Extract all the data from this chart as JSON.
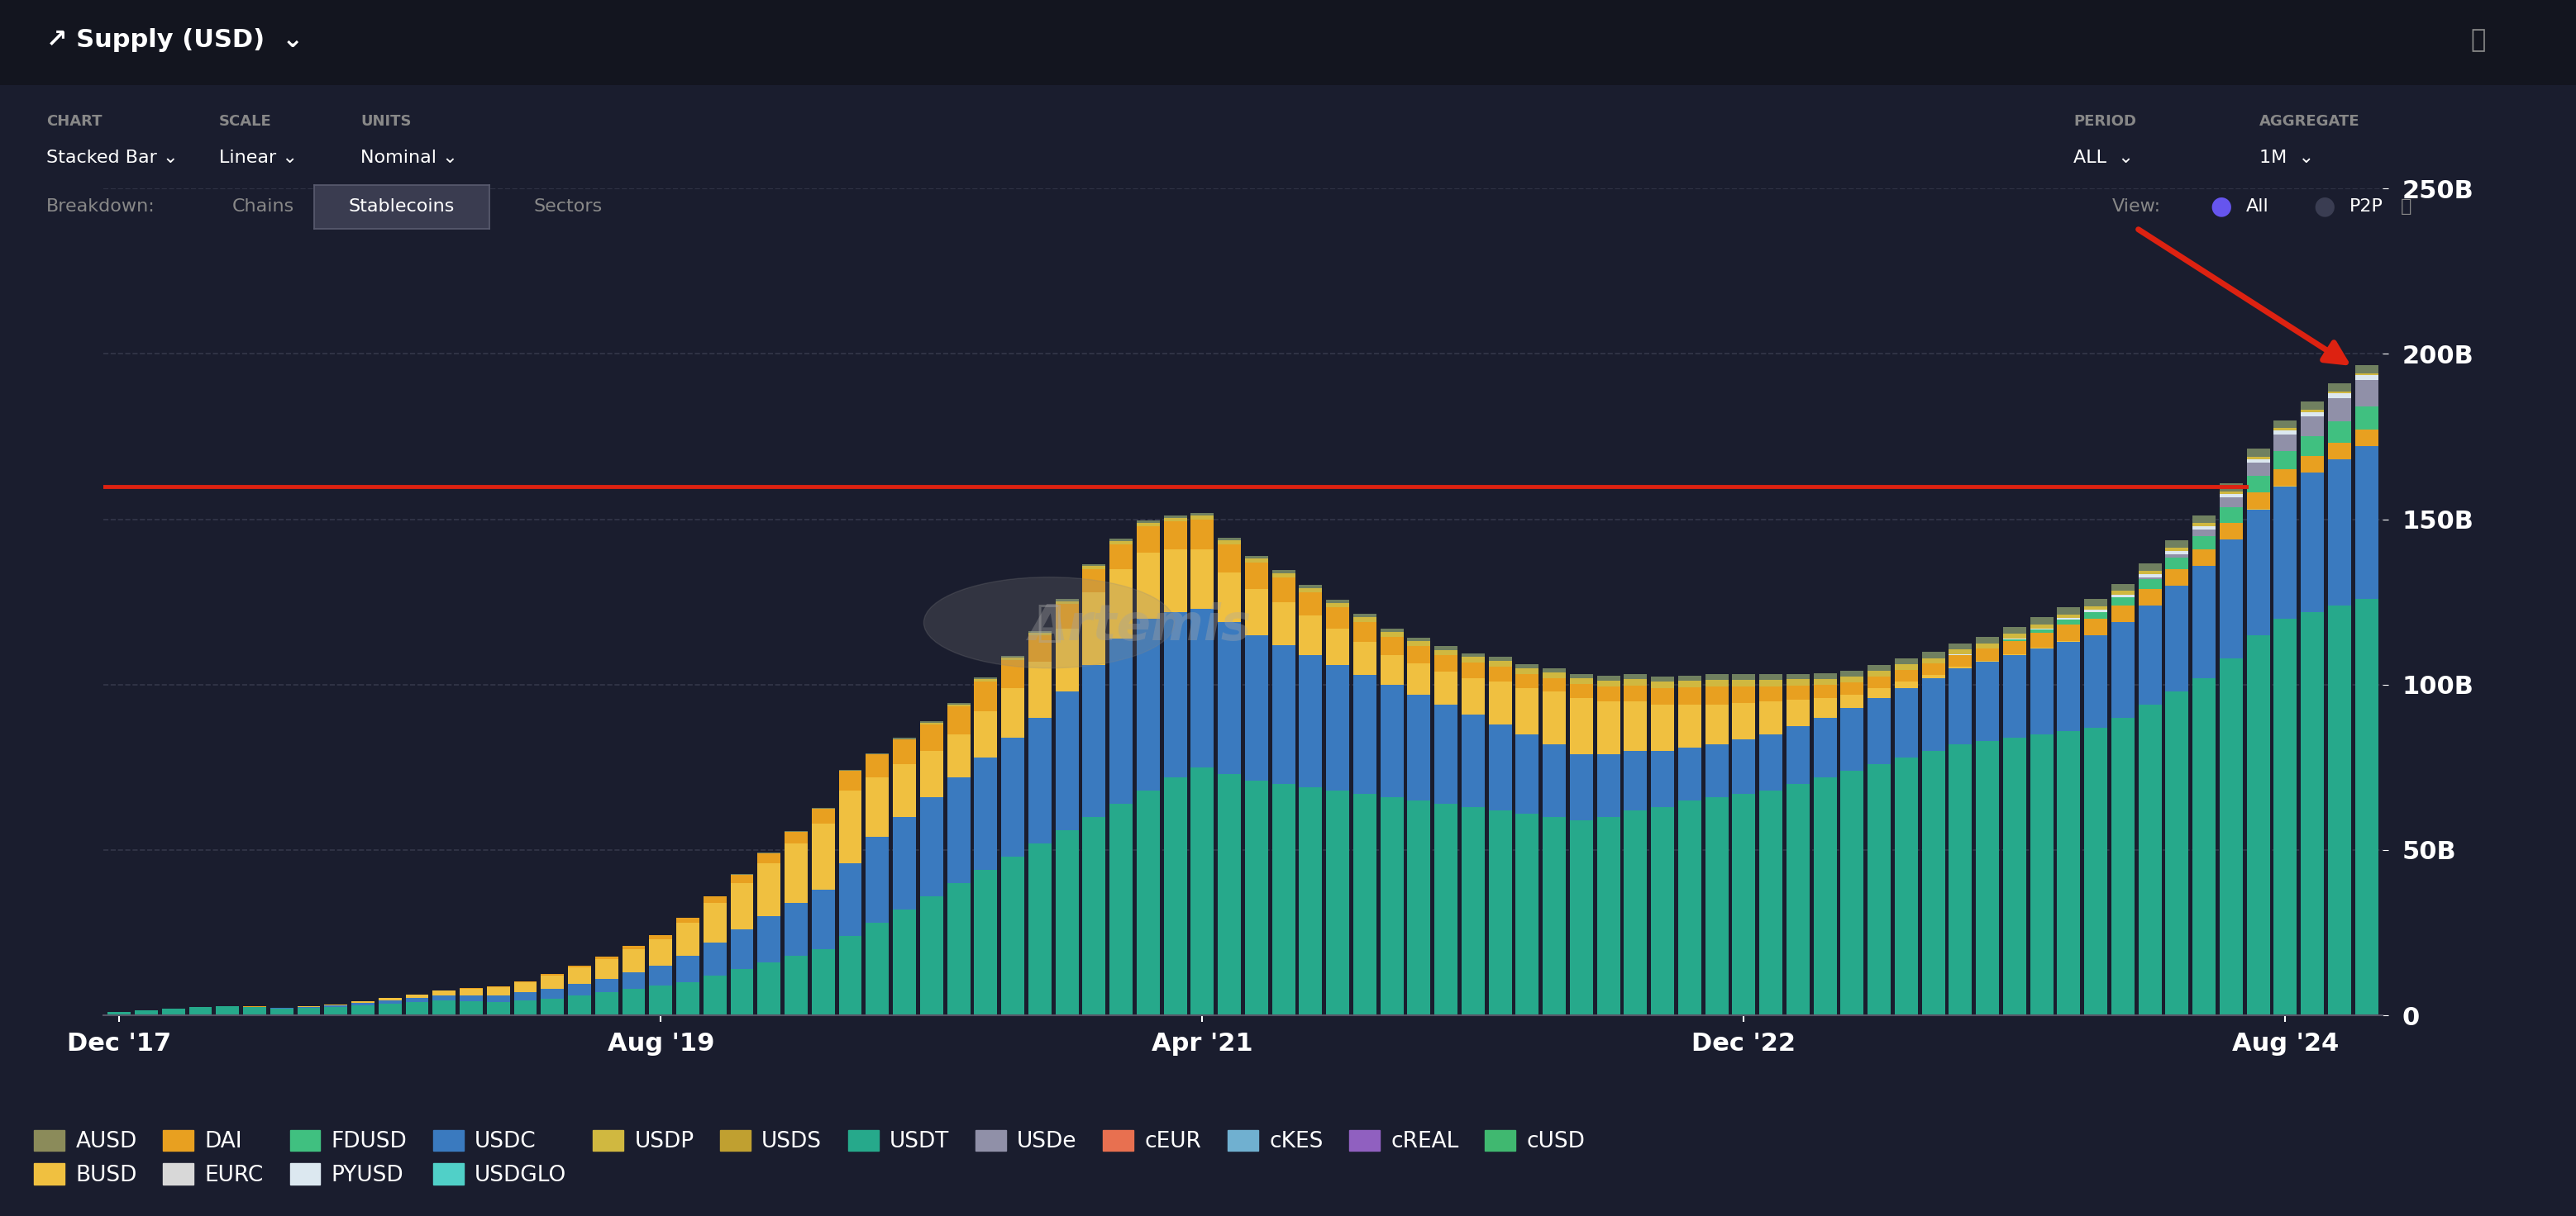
{
  "background_color": "#1a1d2e",
  "plot_bg_color": "#1a1d2e",
  "title": "Supply (USD)",
  "ylim": [
    0,
    250000000000
  ],
  "yticks": [
    0,
    50000000000,
    100000000000,
    150000000000,
    200000000000,
    250000000000
  ],
  "ytick_labels": [
    "0",
    "50B",
    "100B",
    "150B",
    "200B",
    "250B"
  ],
  "xtick_labels": [
    "Dec '17",
    "Aug '19",
    "Apr '21",
    "Dec '22",
    "Aug '24"
  ],
  "xtick_positions": [
    0,
    20,
    40,
    60,
    80
  ],
  "grid_color": "#3a3d50",
  "text_color": "#ffffff",
  "muted_color": "#888888",
  "legend_items": [
    {
      "label": "AUSD",
      "color": "#8b8b5a"
    },
    {
      "label": "BUSD",
      "color": "#f0c040"
    },
    {
      "label": "DAI",
      "color": "#e8a020"
    },
    {
      "label": "EURC",
      "color": "#d8d8d8"
    },
    {
      "label": "FDUSD",
      "color": "#40c080"
    },
    {
      "label": "PYUSD",
      "color": "#dce8f0"
    },
    {
      "label": "USDC",
      "color": "#3a7abf"
    },
    {
      "label": "USDGLO",
      "color": "#50d0c8"
    },
    {
      "label": "USDP",
      "color": "#d0b840"
    },
    {
      "label": "USDS",
      "color": "#c0a030"
    },
    {
      "label": "USDT",
      "color": "#26a98b"
    },
    {
      "label": "USDe",
      "color": "#9090a8"
    },
    {
      "label": "cEUR",
      "color": "#e87050"
    },
    {
      "label": "cKES",
      "color": "#70b0d0"
    },
    {
      "label": "cREAL",
      "color": "#9060c0"
    },
    {
      "label": "cUSD",
      "color": "#40b870"
    }
  ],
  "red_line_y": 160000000000,
  "n_bars": 84,
  "bar_width": 0.85
}
